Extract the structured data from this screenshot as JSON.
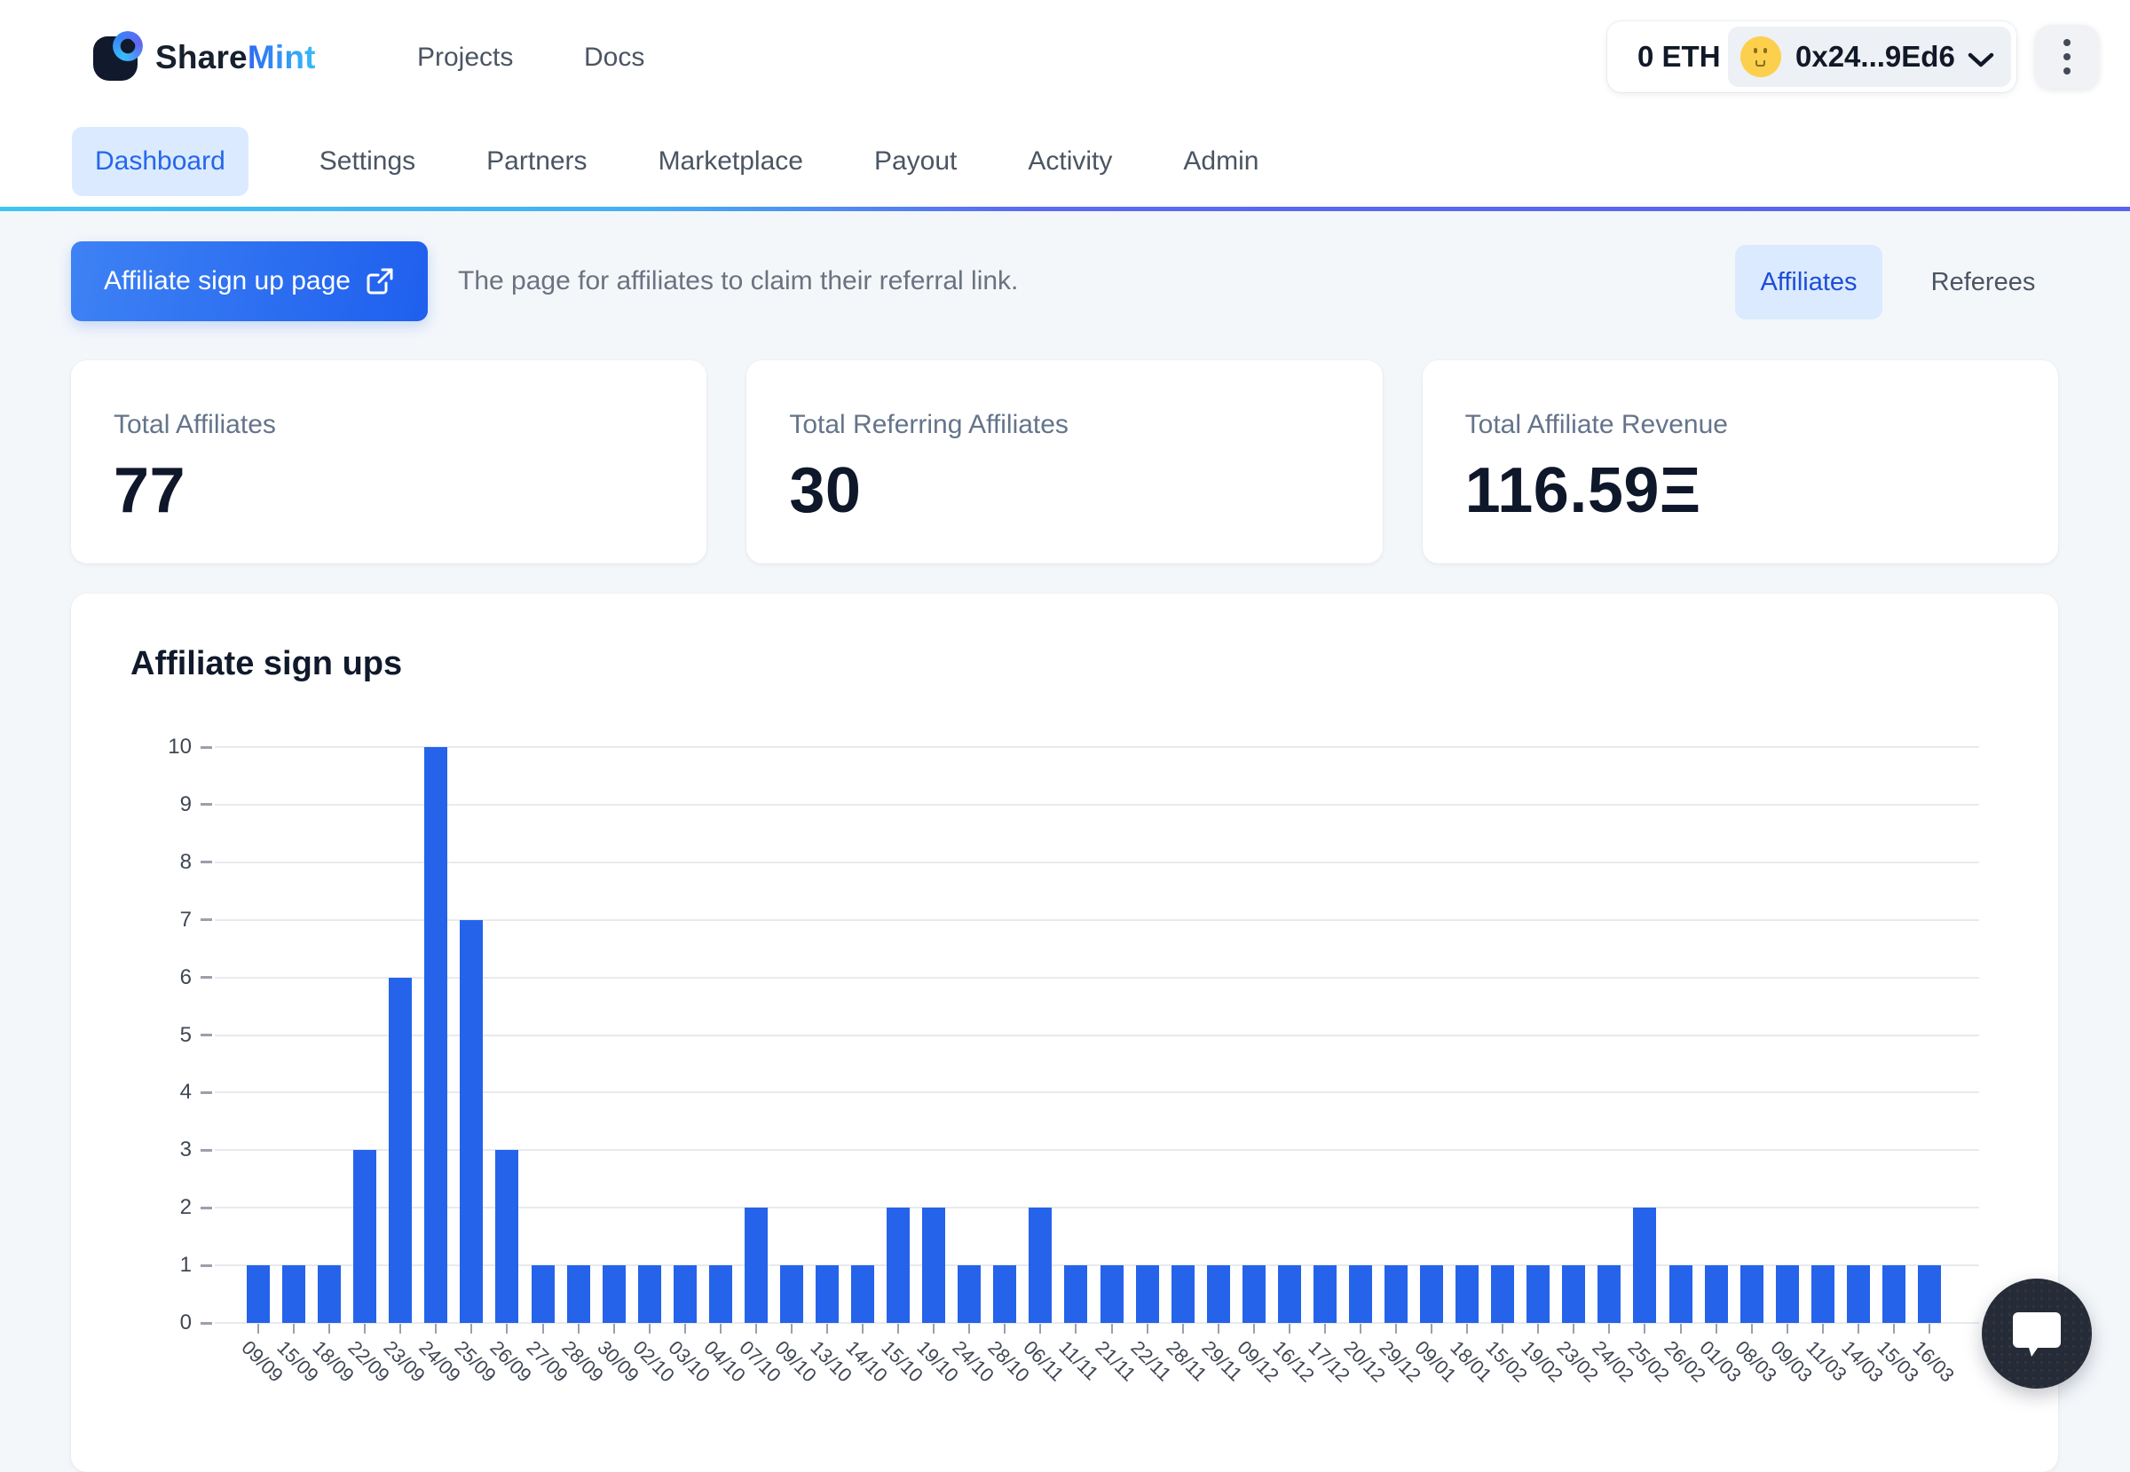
{
  "brand": {
    "name_part1": "Share",
    "name_part2": "Mint"
  },
  "header": {
    "nav": [
      {
        "label": "Projects"
      },
      {
        "label": "Docs"
      }
    ],
    "wallet": {
      "balance": "0 ETH",
      "address": "0x24...9Ed6"
    }
  },
  "tabs": [
    {
      "label": "Dashboard",
      "active": true
    },
    {
      "label": "Settings",
      "active": false
    },
    {
      "label": "Partners",
      "active": false
    },
    {
      "label": "Marketplace",
      "active": false
    },
    {
      "label": "Payout",
      "active": false
    },
    {
      "label": "Activity",
      "active": false
    },
    {
      "label": "Admin",
      "active": false
    }
  ],
  "hero": {
    "signup_button": "Affiliate sign up page",
    "description": "The page for affiliates to claim their referral link.",
    "toggle": [
      {
        "label": "Affiliates",
        "active": true
      },
      {
        "label": "Referees",
        "active": false
      }
    ]
  },
  "stats": [
    {
      "label": "Total Affiliates",
      "value": "77"
    },
    {
      "label": "Total Referring Affiliates",
      "value": "30"
    },
    {
      "label": "Total Affiliate Revenue",
      "value": "116.59Ξ"
    }
  ],
  "chart_data": {
    "type": "bar",
    "title": "Affiliate sign ups",
    "categories": [
      "09/09",
      "15/09",
      "18/09",
      "22/09",
      "23/09",
      "24/09",
      "25/09",
      "26/09",
      "27/09",
      "28/09",
      "30/09",
      "02/10",
      "03/10",
      "04/10",
      "07/10",
      "09/10",
      "13/10",
      "14/10",
      "15/10",
      "19/10",
      "24/10",
      "28/10",
      "06/11",
      "11/11",
      "21/11",
      "22/11",
      "28/11",
      "29/11",
      "09/12",
      "16/12",
      "17/12",
      "20/12",
      "29/12",
      "09/01",
      "18/01",
      "15/02",
      "19/02",
      "23/02",
      "24/02",
      "25/02",
      "26/02",
      "01/03",
      "08/03",
      "09/03",
      "11/03",
      "14/03",
      "15/03",
      "16/03"
    ],
    "values": [
      1,
      1,
      1,
      3,
      6,
      10,
      7,
      3,
      1,
      1,
      1,
      1,
      1,
      1,
      2,
      1,
      1,
      1,
      2,
      2,
      1,
      1,
      2,
      1,
      1,
      1,
      1,
      1,
      1,
      1,
      1,
      1,
      1,
      1,
      1,
      1,
      1,
      1,
      1,
      2,
      1,
      1,
      1,
      1,
      1,
      1,
      1,
      1
    ],
    "ylim": [
      0,
      10
    ],
    "ytick_step": 1,
    "grid": true,
    "legend": false,
    "bar_color": "#2563eb"
  },
  "colors": {
    "accent": "#2563eb",
    "accent_light": "#dbeafe",
    "divider_cyan": "#3fc4f4",
    "divider_indigo": "#5a63f1",
    "avatar_yellow": "#fcd04d",
    "text_dark": "#0f172a",
    "text_gray": "#6b7280",
    "page_bg": "#f4f7fa"
  }
}
